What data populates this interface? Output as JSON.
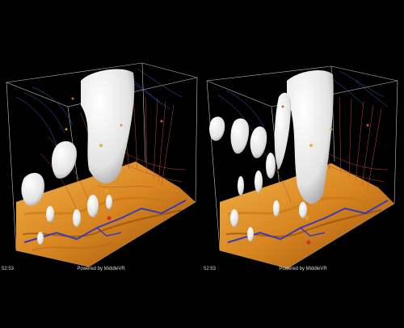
{
  "viewports": [
    {
      "time": "52:53",
      "credit": "Powered by MiddleVR"
    },
    {
      "time": "52:53",
      "credit": "Powered by MiddleVR"
    }
  ],
  "colors": {
    "background": "#000000",
    "terrain_light": "#f2a93a",
    "terrain_dark": "#a95b0f",
    "isosurface": "#ececec",
    "streamline_red": "#c0453a",
    "streamline_blue": "#3f5ec8",
    "box_edge": "#bfbfbf"
  }
}
